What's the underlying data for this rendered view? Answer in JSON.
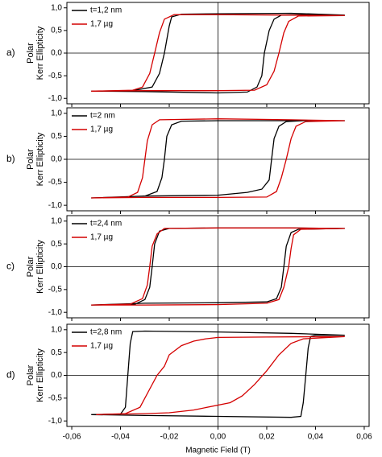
{
  "chart_data": [
    {
      "type": "line",
      "label": "a)",
      "ylabel": [
        "Polar",
        "Kerr Ellipticity"
      ],
      "xlim": [
        -0.062,
        0.062
      ],
      "ylim": [
        -1.12,
        1.12
      ],
      "yticks": [
        {
          "value": 1,
          "label": "1,0"
        },
        {
          "value": 0.5,
          "label": "0,5"
        },
        {
          "value": 0,
          "label": "0,0"
        },
        {
          "value": -0.5,
          "label": "-0,5"
        },
        {
          "value": -1,
          "label": "-1,0"
        }
      ],
      "series": [
        {
          "name": "t=1,2 nm",
          "color": "#000000",
          "x": [
            0.052,
            0.03,
            0.0,
            -0.015,
            -0.019,
            -0.02,
            -0.021,
            -0.022,
            -0.024,
            -0.027,
            -0.035,
            -0.052,
            -0.052,
            -0.03,
            0.0,
            0.012,
            0.016,
            0.018,
            0.019,
            0.021,
            0.023,
            0.026,
            0.035,
            0.052
          ],
          "values": [
            0.84,
            0.88,
            0.87,
            0.86,
            0.8,
            0.6,
            0.3,
            0.0,
            -0.45,
            -0.75,
            -0.83,
            -0.84,
            -0.84,
            -0.85,
            -0.88,
            -0.86,
            -0.75,
            -0.5,
            0.0,
            0.5,
            0.75,
            0.84,
            0.85,
            0.84
          ]
        },
        {
          "name": "1,7 µg",
          "color": "#d40000",
          "x": [
            0.052,
            0.03,
            0.0,
            -0.018,
            -0.022,
            -0.024,
            -0.026,
            -0.028,
            -0.031,
            -0.035,
            -0.052,
            -0.052,
            -0.03,
            0.0,
            0.015,
            0.02,
            0.023,
            0.025,
            0.027,
            0.029,
            0.033,
            0.052
          ],
          "values": [
            0.83,
            0.84,
            0.85,
            0.85,
            0.75,
            0.45,
            0.0,
            -0.45,
            -0.75,
            -0.82,
            -0.84,
            -0.84,
            -0.83,
            -0.83,
            -0.82,
            -0.7,
            -0.4,
            0.0,
            0.45,
            0.7,
            0.82,
            0.83
          ]
        }
      ]
    },
    {
      "type": "line",
      "label": "b)",
      "ylabel": [
        "Polar",
        "Kerr Ellipticity"
      ],
      "xlim": [
        -0.062,
        0.062
      ],
      "ylim": [
        -1.12,
        1.12
      ],
      "yticks": [
        {
          "value": 1,
          "label": "1,0"
        },
        {
          "value": 0.5,
          "label": "0,5"
        },
        {
          "value": 0,
          "label": "0,0"
        },
        {
          "value": -0.5,
          "label": "-0,5"
        },
        {
          "value": -1,
          "label": "-1,0"
        }
      ],
      "series": [
        {
          "name": "t=2 nm",
          "color": "#000000",
          "x": [
            0.052,
            0.03,
            0.0,
            -0.015,
            -0.019,
            -0.021,
            -0.022,
            -0.023,
            -0.025,
            -0.03,
            -0.052,
            -0.052,
            -0.03,
            0.0,
            0.012,
            0.018,
            0.021,
            0.022,
            0.023,
            0.025,
            0.028,
            0.035,
            0.052
          ],
          "values": [
            0.84,
            0.84,
            0.84,
            0.83,
            0.75,
            0.5,
            0.0,
            -0.4,
            -0.7,
            -0.8,
            -0.84,
            -0.84,
            -0.8,
            -0.78,
            -0.72,
            -0.65,
            -0.45,
            0.0,
            0.45,
            0.72,
            0.82,
            0.84,
            0.84
          ]
        },
        {
          "name": "1,7 µg",
          "color": "#d40000",
          "x": [
            0.052,
            0.03,
            0.0,
            -0.024,
            -0.027,
            -0.029,
            -0.03,
            -0.031,
            -0.033,
            -0.037,
            -0.052,
            -0.052,
            -0.03,
            0.0,
            0.02,
            0.024,
            0.026,
            0.028,
            0.03,
            0.032,
            0.036,
            0.052
          ],
          "values": [
            0.84,
            0.86,
            0.88,
            0.86,
            0.75,
            0.4,
            0.0,
            -0.4,
            -0.72,
            -0.82,
            -0.84,
            -0.84,
            -0.83,
            -0.83,
            -0.82,
            -0.7,
            -0.4,
            0.0,
            0.45,
            0.72,
            0.82,
            0.84
          ]
        }
      ]
    },
    {
      "type": "line",
      "label": "c)",
      "ylabel": [
        "Polar",
        "Kerr Ellipticity"
      ],
      "xlim": [
        -0.062,
        0.062
      ],
      "ylim": [
        -1.12,
        1.12
      ],
      "yticks": [
        {
          "value": 1,
          "label": "1,0"
        },
        {
          "value": 0.5,
          "label": "0,5"
        },
        {
          "value": 0,
          "label": "0,0"
        },
        {
          "value": -0.5,
          "label": "-0,5"
        },
        {
          "value": -1,
          "label": "-1,0"
        }
      ],
      "series": [
        {
          "name": "t=2,4 nm",
          "color": "#000000",
          "x": [
            0.052,
            0.03,
            0.0,
            -0.02,
            -0.024,
            -0.026,
            -0.027,
            -0.028,
            -0.03,
            -0.034,
            -0.052,
            -0.052,
            -0.03,
            0.0,
            0.02,
            0.024,
            0.026,
            0.027,
            0.028,
            0.03,
            0.033,
            0.052
          ],
          "values": [
            0.84,
            0.85,
            0.85,
            0.84,
            0.78,
            0.5,
            0.0,
            -0.45,
            -0.72,
            -0.82,
            -0.84,
            -0.84,
            -0.8,
            -0.79,
            -0.77,
            -0.7,
            -0.45,
            0.0,
            0.45,
            0.75,
            0.82,
            0.84
          ]
        },
        {
          "name": "1,7 µg",
          "color": "#d40000",
          "x": [
            0.052,
            0.03,
            0.0,
            -0.022,
            -0.025,
            -0.027,
            -0.028,
            -0.029,
            -0.031,
            -0.036,
            -0.052,
            -0.052,
            -0.03,
            0.0,
            0.02,
            0.025,
            0.027,
            0.029,
            0.03,
            0.031,
            0.034,
            0.052
          ],
          "values": [
            0.84,
            0.85,
            0.85,
            0.84,
            0.72,
            0.45,
            0.0,
            -0.4,
            -0.7,
            -0.82,
            -0.84,
            -0.84,
            -0.84,
            -0.83,
            -0.8,
            -0.72,
            -0.45,
            0.0,
            0.4,
            0.7,
            0.82,
            0.84
          ]
        }
      ]
    },
    {
      "type": "line",
      "label": "d)",
      "ylabel": [
        "Polar",
        "Kerr Ellipticity"
      ],
      "xlabel": "Magnetic Field (T)",
      "xlim": [
        -0.062,
        0.062
      ],
      "ylim": [
        -1.12,
        1.12
      ],
      "xticks": [
        {
          "value": -0.06,
          "label": "-0,06"
        },
        {
          "value": -0.04,
          "label": "-0,04"
        },
        {
          "value": -0.02,
          "label": "-0,02"
        },
        {
          "value": 0,
          "label": "0,00"
        },
        {
          "value": 0.02,
          "label": "0,02"
        },
        {
          "value": 0.04,
          "label": "0,04"
        },
        {
          "value": 0.06,
          "label": "0,06"
        }
      ],
      "yticks": [
        {
          "value": 1,
          "label": "1,0"
        },
        {
          "value": 0.5,
          "label": "0,5"
        },
        {
          "value": 0,
          "label": "0,0"
        },
        {
          "value": -0.5,
          "label": "-0,5"
        },
        {
          "value": -1,
          "label": "-1,0"
        }
      ],
      "series": [
        {
          "name": "t=2,8 nm",
          "color": "#000000",
          "x": [
            0.052,
            0.03,
            0.0,
            -0.03,
            -0.035,
            -0.036,
            -0.037,
            -0.038,
            -0.04,
            -0.052,
            -0.052,
            -0.03,
            0.0,
            0.03,
            0.034,
            0.035,
            0.036,
            0.037,
            0.038,
            0.04,
            0.052
          ],
          "values": [
            0.88,
            0.92,
            0.95,
            0.97,
            0.96,
            0.7,
            0.0,
            -0.7,
            -0.85,
            -0.86,
            -0.86,
            -0.88,
            -0.9,
            -0.92,
            -0.9,
            -0.6,
            0.0,
            0.6,
            0.85,
            0.88,
            0.88
          ]
        },
        {
          "name": "1,7 µg",
          "color": "#d40000",
          "x": [
            0.052,
            0.02,
            0.0,
            -0.005,
            -0.01,
            -0.015,
            -0.02,
            -0.022,
            -0.025,
            -0.028,
            -0.032,
            -0.038,
            -0.05,
            -0.05,
            -0.03,
            -0.02,
            -0.01,
            0.005,
            0.01,
            0.015,
            0.02,
            0.025,
            0.03,
            0.035,
            0.052
          ],
          "values": [
            0.85,
            0.84,
            0.83,
            0.8,
            0.75,
            0.65,
            0.45,
            0.2,
            0.0,
            -0.3,
            -0.7,
            -0.84,
            -0.86,
            -0.86,
            -0.84,
            -0.82,
            -0.76,
            -0.6,
            -0.45,
            -0.2,
            0.1,
            0.45,
            0.7,
            0.8,
            0.85
          ]
        }
      ]
    }
  ]
}
